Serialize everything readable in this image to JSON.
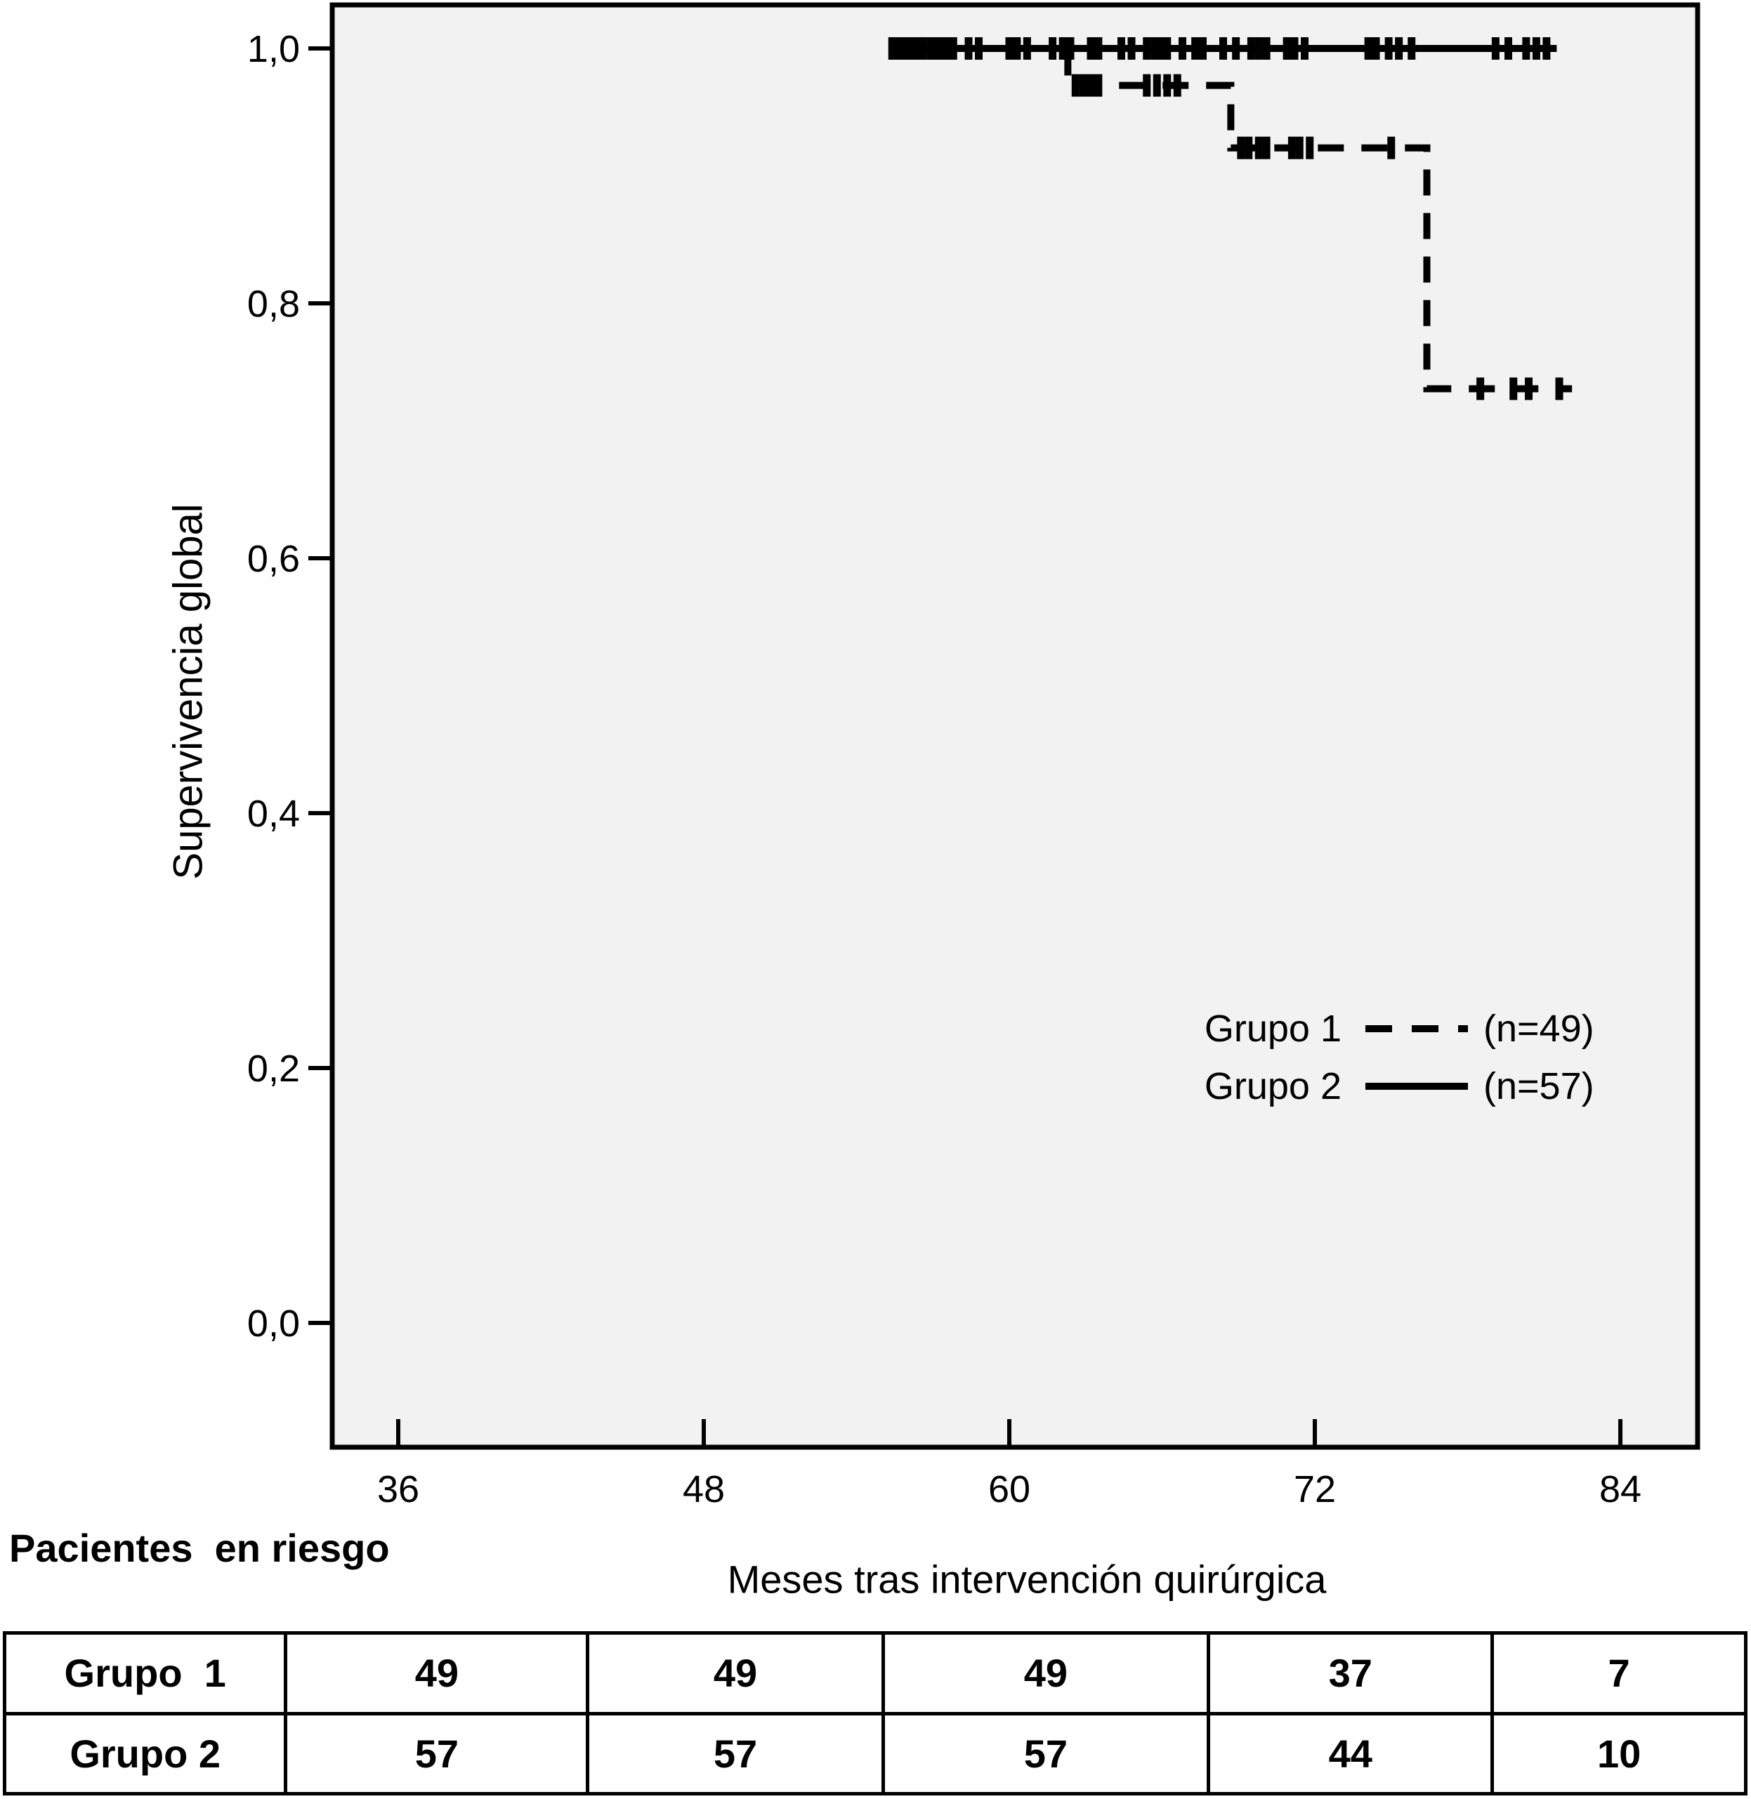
{
  "figure": {
    "background": "#ffffff",
    "plot_background": "#f2f2f2",
    "line_color": "#000000"
  },
  "chart_data": {
    "type": "line",
    "subtype": "kaplan-meier-step",
    "title": "",
    "xlabel": "Meses tras intervención quirúrgica",
    "ylabel": "Supervivencia global",
    "xlim": [
      33.4,
      87.0
    ],
    "ylim": [
      -0.1,
      1.035
    ],
    "x_ticks": [
      36,
      48,
      60,
      72,
      84
    ],
    "y_ticks": [
      {
        "value": 1.0,
        "label": "1,0"
      },
      {
        "value": 0.8,
        "label": "0,8"
      },
      {
        "value": 0.6,
        "label": "0,6"
      },
      {
        "value": 0.4,
        "label": "0,4"
      },
      {
        "value": 0.2,
        "label": "0,2"
      },
      {
        "value": 0.0,
        "label": "0,0"
      }
    ],
    "grid": false,
    "legend_position": "center-right",
    "series": [
      {
        "name": "Grupo 1",
        "n_label": "(n=49)",
        "line_style": "dashed",
        "steps": [
          [
            55.5,
            1.0
          ],
          [
            62.3,
            1.0
          ],
          [
            62.3,
            0.971
          ],
          [
            68.7,
            0.971
          ],
          [
            68.7,
            0.922
          ],
          [
            76.4,
            0.922
          ],
          [
            76.4,
            0.733
          ],
          [
            82.1,
            0.733
          ]
        ],
        "censor_marks": [
          [
            62.6,
            0.971
          ],
          [
            62.9,
            0.971
          ],
          [
            63.2,
            0.971
          ],
          [
            63.5,
            0.971
          ],
          [
            65.4,
            0.971
          ],
          [
            65.8,
            0.971
          ],
          [
            66.2,
            0.971
          ],
          [
            66.6,
            0.971
          ],
          [
            69.1,
            0.922
          ],
          [
            69.4,
            0.922
          ],
          [
            69.8,
            0.922
          ],
          [
            70.1,
            0.922
          ],
          [
            71.1,
            0.922
          ],
          [
            71.4,
            0.922
          ],
          [
            71.8,
            0.922
          ],
          [
            75.0,
            0.922
          ],
          [
            78.5,
            0.733
          ],
          [
            79.8,
            0.733
          ],
          [
            80.4,
            0.733
          ],
          [
            81.6,
            0.733
          ]
        ]
      },
      {
        "name": "Grupo 2",
        "n_label": "(n=57)",
        "line_style": "solid",
        "steps": [
          [
            55.5,
            1.0
          ],
          [
            81.5,
            1.0
          ]
        ],
        "censor_marks": [
          [
            55.4,
            1.0
          ],
          [
            55.6,
            1.0
          ],
          [
            55.8,
            1.0
          ],
          [
            56.0,
            1.0
          ],
          [
            56.3,
            1.0
          ],
          [
            56.4,
            1.0
          ],
          [
            56.6,
            1.0
          ],
          [
            56.9,
            1.0
          ],
          [
            57.1,
            1.0
          ],
          [
            57.3,
            1.0
          ],
          [
            57.6,
            1.0
          ],
          [
            57.8,
            1.0
          ],
          [
            58.4,
            1.0
          ],
          [
            58.8,
            1.0
          ],
          [
            60.0,
            1.0
          ],
          [
            60.3,
            1.0
          ],
          [
            60.7,
            1.0
          ],
          [
            61.7,
            1.0
          ],
          [
            62.1,
            1.0
          ],
          [
            62.4,
            1.0
          ],
          [
            63.2,
            1.0
          ],
          [
            63.5,
            1.0
          ],
          [
            64.4,
            1.0
          ],
          [
            64.8,
            1.0
          ],
          [
            65.4,
            1.0
          ],
          [
            65.7,
            1.0
          ],
          [
            66.0,
            1.0
          ],
          [
            66.2,
            1.0
          ],
          [
            66.8,
            1.0
          ],
          [
            67.3,
            1.0
          ],
          [
            67.6,
            1.0
          ],
          [
            68.4,
            1.0
          ],
          [
            68.9,
            1.0
          ],
          [
            69.5,
            1.0
          ],
          [
            69.8,
            1.0
          ],
          [
            70.1,
            1.0
          ],
          [
            70.9,
            1.0
          ],
          [
            71.2,
            1.0
          ],
          [
            71.6,
            1.0
          ],
          [
            74.1,
            1.0
          ],
          [
            74.4,
            1.0
          ],
          [
            74.9,
            1.0
          ],
          [
            75.3,
            1.0
          ],
          [
            75.8,
            1.0
          ],
          [
            79.1,
            1.0
          ],
          [
            79.6,
            1.0
          ],
          [
            80.3,
            1.0
          ],
          [
            80.7,
            1.0
          ],
          [
            81.1,
            1.0
          ]
        ]
      }
    ]
  },
  "risk_table": {
    "title": "Pacientes  en riesgo",
    "rows": [
      {
        "label": "Grupo  1",
        "values": [
          "49",
          "49",
          "49",
          "37",
          "7"
        ]
      },
      {
        "label": "Grupo 2",
        "values": [
          "57",
          "57",
          "57",
          "44",
          "10"
        ]
      }
    ]
  }
}
